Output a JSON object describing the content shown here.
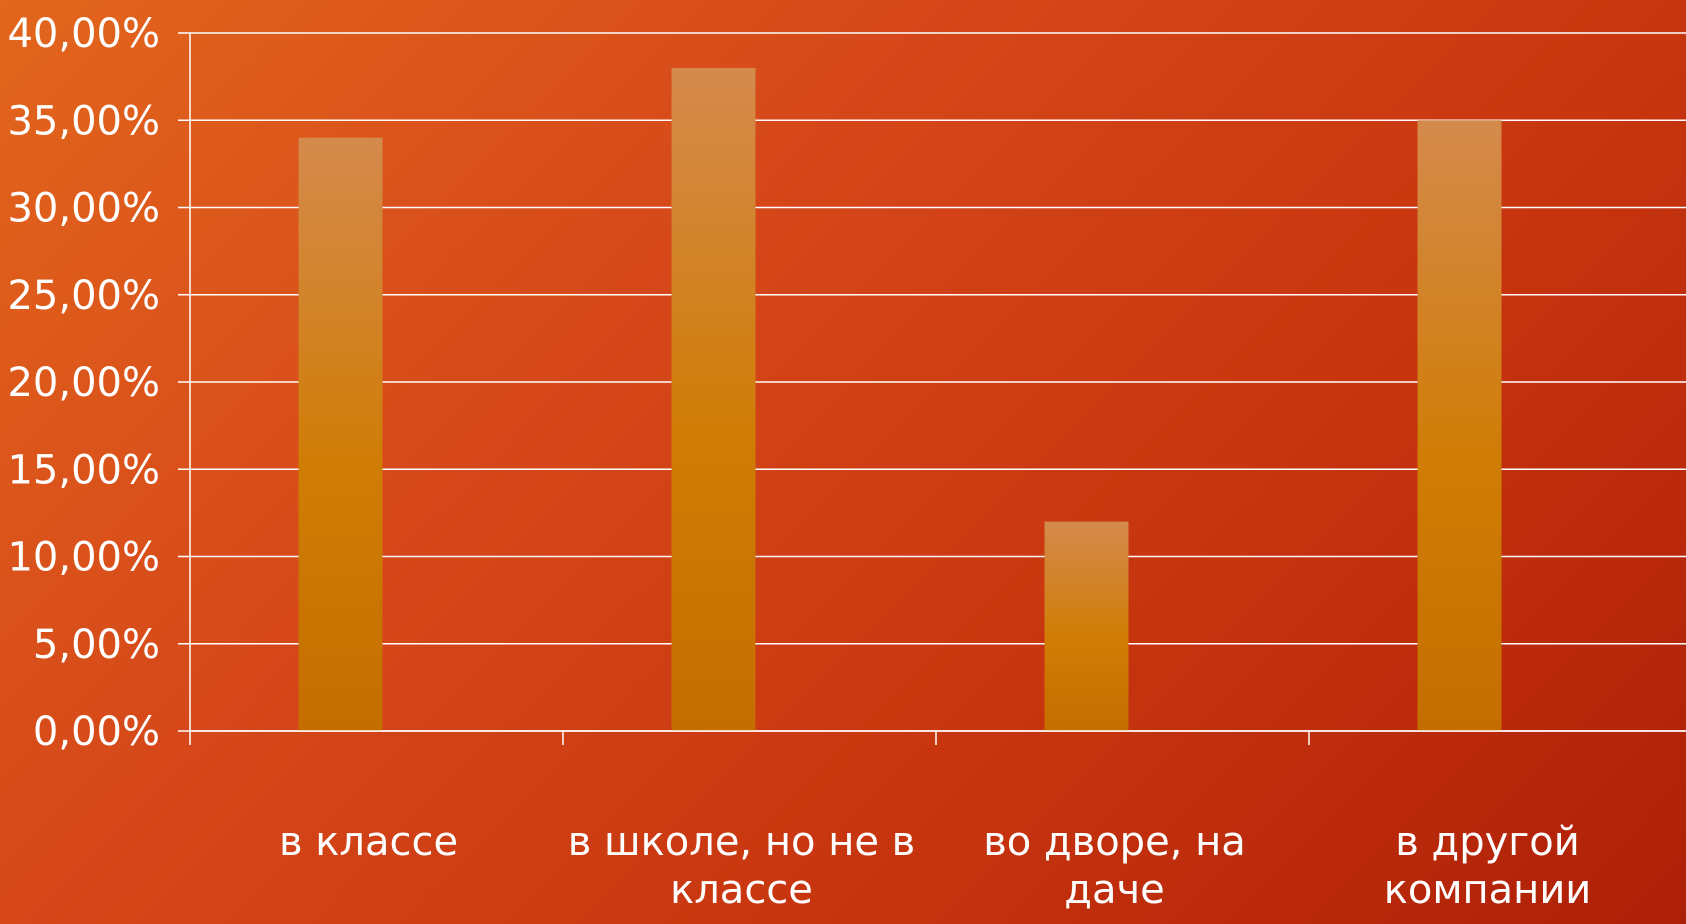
{
  "chart_data": {
    "type": "bar",
    "categories": [
      [
        "в классе"
      ],
      [
        "в школе, но не в",
        "классе"
      ],
      [
        "во дворе, на",
        "даче"
      ],
      [
        "в другой",
        "компании"
      ]
    ],
    "values": [
      34,
      38,
      12,
      35
    ],
    "y_ticks": [
      "0,00%",
      "5,00%",
      "10,00%",
      "15,00%",
      "20,00%",
      "25,00%",
      "30,00%",
      "35,00%",
      "40,00%"
    ],
    "ylim": [
      0,
      40
    ],
    "y_step": 5,
    "grid": true,
    "legend": "none",
    "colors": {
      "bar_top": "#d48a4c",
      "bar_mid": "#d07d06",
      "bar_bottom": "#c46e00",
      "axis": "#ffffff"
    }
  }
}
